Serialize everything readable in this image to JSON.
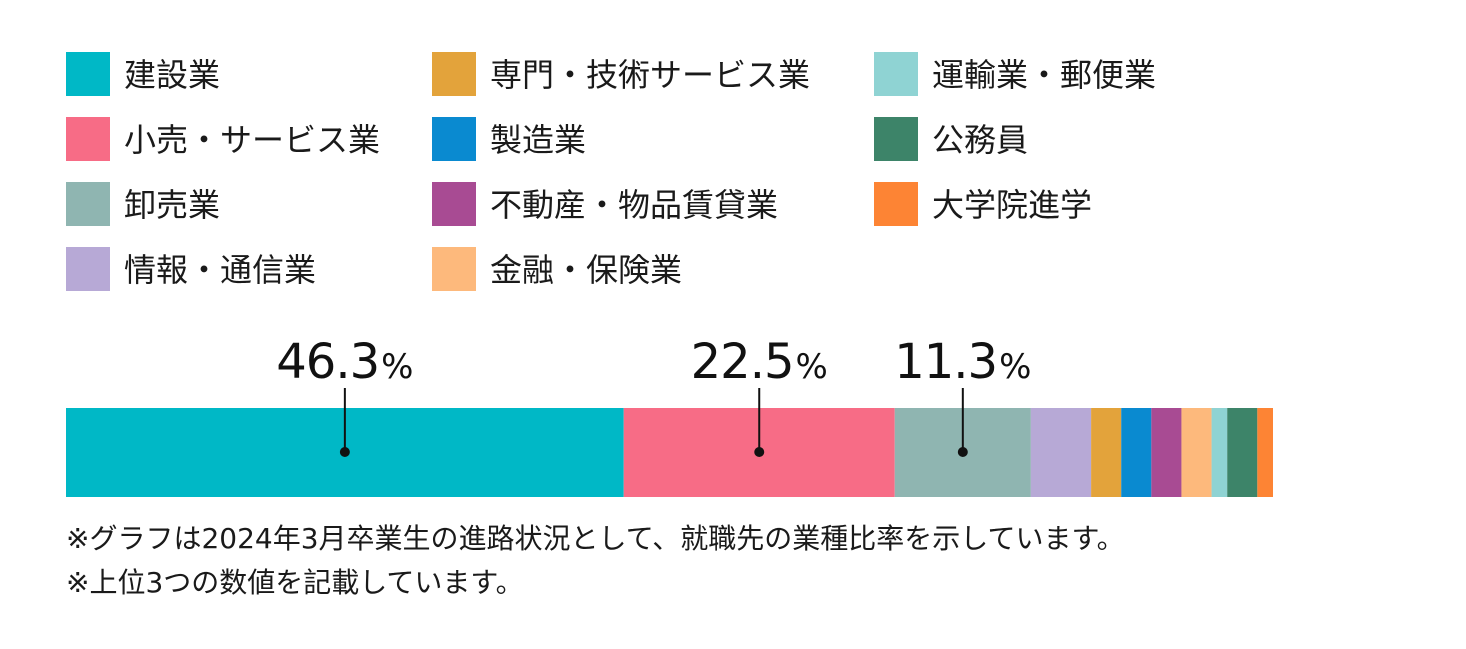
{
  "chart_data": {
    "type": "bar",
    "orientation": "horizontal-stacked",
    "title": "",
    "xlabel": "",
    "ylabel": "",
    "legend_position": "top",
    "grid": false,
    "series": [
      {
        "name": "建設業",
        "value": 46.3,
        "color": "#00B8C6",
        "label": "46.3"
      },
      {
        "name": "小売・サービス業",
        "value": 22.5,
        "color": "#F76C86",
        "label": "22.5"
      },
      {
        "name": "卸売業",
        "value": 11.3,
        "color": "#8FB5B1",
        "label": "11.3"
      },
      {
        "name": "情報・通信業",
        "value": 5.0,
        "color": "#B7A9D6"
      },
      {
        "name": "専門・技術サービス業",
        "value": 2.5,
        "color": "#E3A33B"
      },
      {
        "name": "製造業",
        "value": 2.5,
        "color": "#0A8AD0"
      },
      {
        "name": "不動産・物品賃貸業",
        "value": 2.5,
        "color": "#A84B93"
      },
      {
        "name": "金融・保険業",
        "value": 2.5,
        "color": "#FDB97C"
      },
      {
        "name": "運輸業・郵便業",
        "value": 1.3,
        "color": "#8FD3D3"
      },
      {
        "name": "公務員",
        "value": 2.5,
        "color": "#3D8469"
      },
      {
        "name": "大学院進学",
        "value": 1.3,
        "color": "#FD8434"
      }
    ],
    "legend_order": [
      "建設業",
      "専門・技術サービス業",
      "運輸業・郵便業",
      "小売・サービス業",
      "製造業",
      "公務員",
      "卸売業",
      "不動産・物品賃貸業",
      "大学院進学",
      "情報・通信業",
      "金融・保険業"
    ],
    "percent_sign": "%",
    "notes": [
      "※グラフは2024年3月卒業生の進路状況として、就職先の業種比率を示しています。",
      "※上位3つの数値を記載しています。"
    ]
  }
}
